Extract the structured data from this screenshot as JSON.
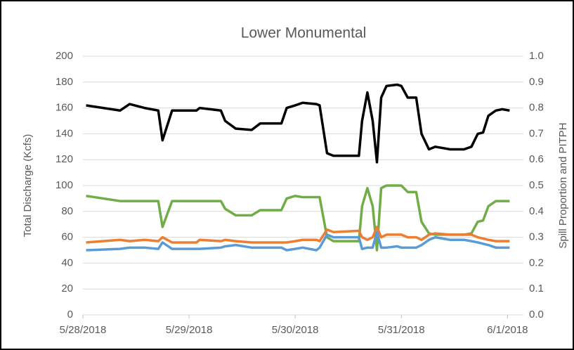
{
  "chart_data": {
    "type": "line",
    "title": "Lower Monumental",
    "ylabel": "Total Discharge (Kcfs)",
    "y2label": "Spill Proportion and PITPH",
    "x": [
      0.03,
      0.35,
      0.44,
      0.58,
      0.71,
      0.75,
      0.84,
      1.07,
      1.1,
      1.3,
      1.34,
      1.44,
      1.59,
      1.67,
      1.87,
      1.92,
      2.0,
      2.07,
      2.2,
      2.23,
      2.3,
      2.36,
      2.6,
      2.63,
      2.68,
      2.73,
      2.77,
      2.81,
      2.86,
      2.96,
      3.0,
      3.06,
      3.14,
      3.19,
      3.26,
      3.32,
      3.46,
      3.59,
      3.66,
      3.72,
      3.77,
      3.82,
      3.89,
      3.95,
      4.02
    ],
    "series": [
      {
        "color": "#000000",
        "values": [
          162,
          158,
          163,
          160,
          158,
          135,
          158,
          158,
          160,
          158,
          150,
          144,
          143,
          148,
          148,
          160,
          162,
          164,
          163,
          162,
          125,
          123,
          123,
          150,
          172,
          150,
          118,
          168,
          177,
          178,
          177,
          168,
          168,
          140,
          128,
          130,
          128,
          128,
          130,
          140,
          141,
          154,
          158,
          159,
          158
        ]
      },
      {
        "color": "#70ad47",
        "axis": "y2",
        "values": [
          0.46,
          0.44,
          0.44,
          0.44,
          0.44,
          0.34,
          0.44,
          0.44,
          0.44,
          0.44,
          0.41,
          0.385,
          0.385,
          0.405,
          0.405,
          0.45,
          0.46,
          0.455,
          0.455,
          0.455,
          0.3,
          0.285,
          0.285,
          0.42,
          0.49,
          0.42,
          0.25,
          0.49,
          0.5,
          0.5,
          0.5,
          0.475,
          0.475,
          0.36,
          0.315,
          0.31,
          0.31,
          0.31,
          0.315,
          0.36,
          0.365,
          0.42,
          0.44,
          0.44,
          0.44
        ]
      },
      {
        "color": "#ed7d31",
        "axis": "y2",
        "values": [
          0.28,
          0.29,
          0.285,
          0.29,
          0.285,
          0.3,
          0.28,
          0.28,
          0.29,
          0.285,
          0.29,
          0.285,
          0.28,
          0.28,
          0.28,
          0.28,
          0.285,
          0.29,
          0.29,
          0.285,
          0.33,
          0.32,
          0.325,
          0.3,
          0.29,
          0.3,
          0.34,
          0.3,
          0.31,
          0.31,
          0.31,
          0.3,
          0.3,
          0.29,
          0.31,
          0.315,
          0.31,
          0.31,
          0.31,
          0.3,
          0.295,
          0.29,
          0.285,
          0.285,
          0.285
        ]
      },
      {
        "color": "#5b9bd5",
        "axis": "y2",
        "values": [
          0.25,
          0.255,
          0.26,
          0.26,
          0.255,
          0.28,
          0.255,
          0.255,
          0.255,
          0.26,
          0.265,
          0.27,
          0.26,
          0.26,
          0.26,
          0.25,
          0.255,
          0.26,
          0.25,
          0.26,
          0.31,
          0.3,
          0.3,
          0.255,
          0.26,
          0.26,
          0.32,
          0.26,
          0.26,
          0.265,
          0.26,
          0.26,
          0.26,
          0.27,
          0.29,
          0.3,
          0.29,
          0.29,
          0.285,
          0.28,
          0.275,
          0.27,
          0.26,
          0.26,
          0.26
        ]
      }
    ],
    "xlim": [
      0,
      4.15
    ],
    "xticks": [
      {
        "value": 0,
        "label": "5/28/2018"
      },
      {
        "value": 1,
        "label": "5/29/2018"
      },
      {
        "value": 2,
        "label": "5/30/2018"
      },
      {
        "value": 3,
        "label": "5/31/2018"
      },
      {
        "value": 4,
        "label": "6/1/2018"
      }
    ],
    "ylim": [
      0,
      200
    ],
    "yticks": [
      0,
      20,
      40,
      60,
      80,
      100,
      120,
      140,
      160,
      180,
      200
    ],
    "y2lim": [
      0,
      1
    ],
    "y2ticks": [
      {
        "value": 0,
        "label": "0.0"
      },
      {
        "value": 0.1,
        "label": "0.1"
      },
      {
        "value": 0.2,
        "label": "0.2"
      },
      {
        "value": 0.3,
        "label": "0.3"
      },
      {
        "value": 0.4,
        "label": "0.4"
      },
      {
        "value": 0.5,
        "label": "0.5"
      },
      {
        "value": 0.6,
        "label": "0.6"
      },
      {
        "value": 0.7,
        "label": "0.7"
      },
      {
        "value": 0.8,
        "label": "0.8"
      },
      {
        "value": 0.9,
        "label": "0.9"
      },
      {
        "value": 1,
        "label": "1.0"
      }
    ],
    "grid": true
  }
}
